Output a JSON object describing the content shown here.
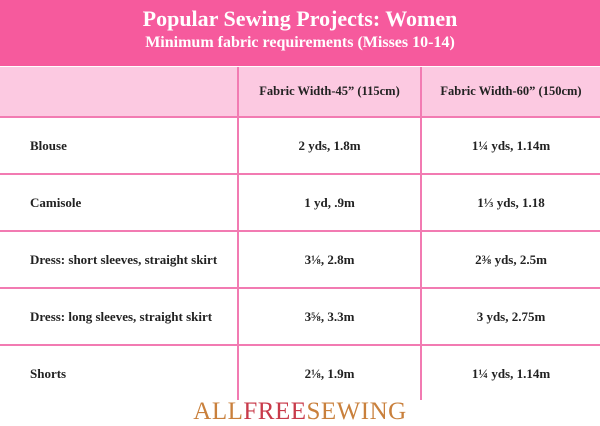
{
  "header": {
    "title": "Popular Sewing Projects: Women",
    "subtitle": "Minimum fabric requirements (Misses 10-14)"
  },
  "table": {
    "columns": [
      "",
      "Fabric Width-45” (115cm)",
      "Fabric Width-60” (150cm)"
    ],
    "rows": [
      {
        "project": "Blouse",
        "w45": "2 yds, 1.8m",
        "w60": "1¼ yds, 1.14m"
      },
      {
        "project": "Camisole",
        "w45": "1 yd, .9m",
        "w60": "1⅓ yds, 1.18"
      },
      {
        "project": "Dress: short sleeves, straight skirt",
        "w45": "3⅛, 2.8m",
        "w60": "2⅜ yds, 2.5m"
      },
      {
        "project": "Dress: long sleeves, straight skirt",
        "w45": "3⅝, 3.3m",
        "w60": "3 yds, 2.75m"
      },
      {
        "project": "Shorts",
        "w45": "2⅛, 1.9m",
        "w60": "1¼ yds, 1.14m"
      }
    ]
  },
  "logo": {
    "part1": "ALL",
    "part2": "FREE",
    "part3": "SEWING"
  },
  "colors": {
    "banner": "#f65a9d",
    "header_row": "#fcc9e1",
    "grid": "#f27bb2",
    "logo_orange": "#c9803c",
    "logo_red": "#c83a4a"
  }
}
